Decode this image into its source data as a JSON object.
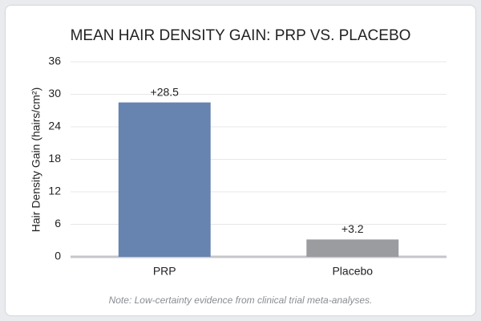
{
  "chart_data": {
    "type": "bar",
    "title": "MEAN HAIR DENSITY GAIN: PRP VS. PLACEBO",
    "y_label": "Hair Density Gain (hairs/cm²)",
    "categories": [
      "PRP",
      "Placebo"
    ],
    "values": [
      28.5,
      3.2
    ],
    "value_labels": [
      "+28.5",
      "+3.2"
    ],
    "colors": [
      "#6783b0",
      "#9a9ca0"
    ],
    "ylim": [
      0,
      36
    ],
    "yticks": [
      0,
      6,
      12,
      18,
      24,
      30,
      36
    ],
    "grid": true,
    "note": "Note: Low-certainty evidence from clinical trial meta-analyses."
  }
}
